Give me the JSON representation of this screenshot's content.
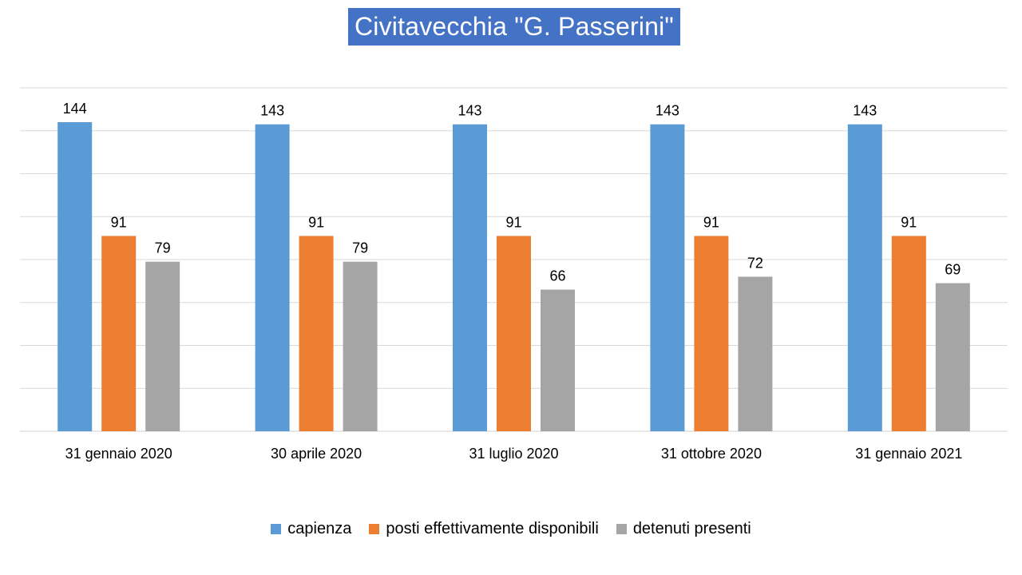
{
  "chart_data": {
    "type": "bar",
    "title": "Civitavecchia \"G. Passerini\"",
    "categories": [
      "31 gennaio 2020",
      "30 aprile 2020",
      "31 luglio 2020",
      "31 ottobre 2020",
      "31 gennaio 2021"
    ],
    "series": [
      {
        "name": "capienza",
        "color": "#5B9BD5",
        "values": [
          144,
          143,
          143,
          143,
          143
        ]
      },
      {
        "name": "posti effettivamente disponibili",
        "color": "#ED7D31",
        "values": [
          91,
          91,
          91,
          91,
          91
        ]
      },
      {
        "name": "detenuti presenti",
        "color": "#A5A5A5",
        "values": [
          79,
          79,
          66,
          72,
          69
        ]
      }
    ],
    "xlabel": "",
    "ylabel": "",
    "ylim": [
      0,
      160
    ],
    "y_ticks_shown": false,
    "gridlines": true,
    "data_labels": true,
    "legend_position": "bottom"
  }
}
